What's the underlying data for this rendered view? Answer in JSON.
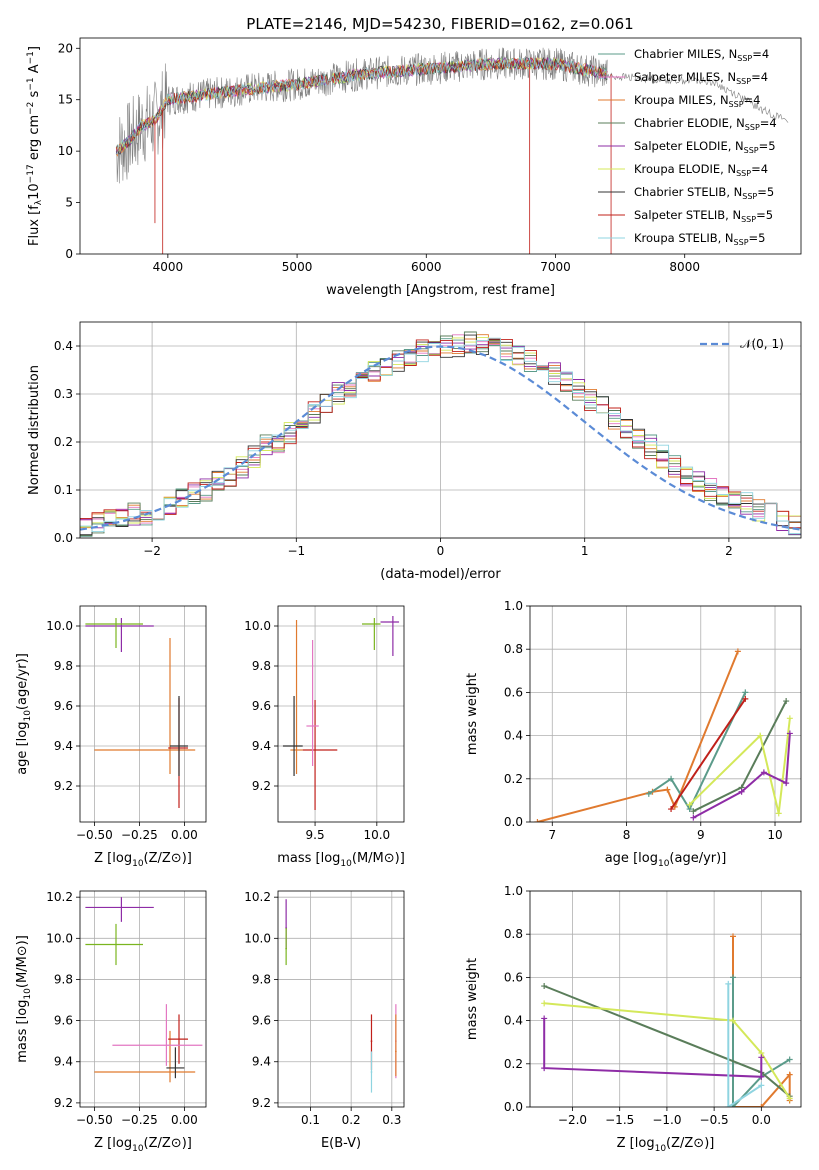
{
  "figure": {
    "title": "PLATE=2146, MJD=54230, FIBERID=0162, z=0.061"
  },
  "chart_data": [
    {
      "id": "spectrum",
      "type": "line",
      "xlabel": "wavelength [Angstrom, rest frame]",
      "ylabel_parts": [
        "Flux [f",
        "λ",
        "10",
        "−17",
        " erg cm",
        "−2",
        " s",
        "−1",
        " A",
        "−1",
        "]"
      ],
      "xlim": [
        3320,
        8900
      ],
      "ylim": [
        0,
        21
      ],
      "xticks": [
        4000,
        5000,
        6000,
        7000,
        8000
      ],
      "yticks": [
        0,
        5,
        10,
        15,
        20
      ],
      "grid": false,
      "legend_position": "right",
      "series": [
        {
          "name": "Chabrier MILES, N",
          "sub": "SSP",
          "suffix": "=4",
          "color": "#5b9b8a"
        },
        {
          "name": "Salpeter MILES, N",
          "sub": "SSP",
          "suffix": "=4",
          "color": "#e377c2"
        },
        {
          "name": "Kroupa MILES, N",
          "sub": "SSP",
          "suffix": "=4",
          "color": "#e07a2f"
        },
        {
          "name": "Chabrier ELODIE, N",
          "sub": "SSP",
          "suffix": "=4",
          "color": "#5a7d5a"
        },
        {
          "name": "Salpeter ELODIE, N",
          "sub": "SSP",
          "suffix": "=5",
          "color": "#8e2ca6"
        },
        {
          "name": "Kroupa ELODIE, N",
          "sub": "SSP",
          "suffix": "=4",
          "color": "#d4e85a"
        },
        {
          "name": "Chabrier STELIB, N",
          "sub": "SSP",
          "suffix": "=5",
          "color": "#333333"
        },
        {
          "name": "Salpeter STELIB, N",
          "sub": "SSP",
          "suffix": "=5",
          "color": "#c0201a"
        },
        {
          "name": "Kroupa STELIB, N",
          "sub": "SSP",
          "suffix": "=5",
          "color": "#8fd4e0"
        }
      ],
      "data_series_color": "#808080",
      "continuum": [
        {
          "x": 3600,
          "y": 10
        },
        {
          "x": 3700,
          "y": 11
        },
        {
          "x": 3800,
          "y": 12.5
        },
        {
          "x": 3900,
          "y": 13
        },
        {
          "x": 4000,
          "y": 15
        },
        {
          "x": 4300,
          "y": 15.5
        },
        {
          "x": 4600,
          "y": 16
        },
        {
          "x": 5000,
          "y": 16.5
        },
        {
          "x": 5500,
          "y": 17.5
        },
        {
          "x": 6000,
          "y": 18
        },
        {
          "x": 6500,
          "y": 18.5
        },
        {
          "x": 7000,
          "y": 18.5
        },
        {
          "x": 7200,
          "y": 18
        },
        {
          "x": 7400,
          "y": 17.5
        }
      ],
      "model_continuum": [
        {
          "x": 7400,
          "y": 17.3
        },
        {
          "x": 7800,
          "y": 17
        },
        {
          "x": 8200,
          "y": 16.8
        },
        {
          "x": 8400,
          "y": 15.5
        },
        {
          "x": 8600,
          "y": 14
        },
        {
          "x": 8800,
          "y": 13
        }
      ]
    },
    {
      "id": "residuals",
      "type": "histogram",
      "xlabel": "(data-model)/error",
      "ylabel": "Normed distribution",
      "xlim": [
        -2.5,
        2.5
      ],
      "ylim": [
        0,
        0.45
      ],
      "xticks": [
        -2,
        -1,
        0,
        1,
        2
      ],
      "yticks": [
        0.0,
        0.1,
        0.2,
        0.3,
        0.4
      ],
      "grid": true,
      "legend": {
        "label": "𝒩(0, 1)",
        "position": "top-right",
        "color": "#5b8bd6"
      },
      "bin_width": 0.1,
      "bin_start": -2.5,
      "hist": [
        0.02,
        0.03,
        0.04,
        0.04,
        0.05,
        0.05,
        0.06,
        0.07,
        0.08,
        0.09,
        0.1,
        0.12,
        0.13,
        0.15,
        0.17,
        0.19,
        0.2,
        0.22,
        0.24,
        0.26,
        0.28,
        0.3,
        0.31,
        0.33,
        0.35,
        0.36,
        0.37,
        0.38,
        0.39,
        0.4,
        0.4,
        0.4,
        0.41,
        0.4,
        0.4,
        0.39,
        0.38,
        0.37,
        0.36,
        0.34,
        0.33,
        0.31,
        0.29,
        0.27,
        0.25,
        0.23,
        0.21,
        0.19,
        0.17,
        0.15,
        0.13,
        0.12,
        0.1,
        0.09,
        0.08,
        0.07,
        0.06,
        0.05,
        0.04,
        0.03
      ],
      "gaussian_sigma": 1
    },
    {
      "id": "age-vs-Z",
      "type": "errorbar",
      "xlabel": "Z [log10(Z/Z⊙)]",
      "ylabel": "age  [log10(age/yr)]",
      "xlim": [
        -0.58,
        0.12
      ],
      "ylim": [
        9.02,
        10.1
      ],
      "xticks": [
        -0.5,
        -0.25,
        0.0
      ],
      "xtick_labels": [
        "−0.50",
        "−0.25",
        "0.00"
      ],
      "yticks": [
        9.2,
        9.4,
        9.6,
        9.8,
        10.0
      ],
      "grid": true,
      "points": [
        {
          "x": -0.35,
          "y": 10.0,
          "xerr": [
            0.2,
            0.18
          ],
          "yerr": [
            0.13,
            0.04
          ],
          "color": "#8e2ca6"
        },
        {
          "x": -0.38,
          "y": 10.01,
          "xerr": [
            0.17,
            0.15
          ],
          "yerr": [
            0.12,
            0.03
          ],
          "color": "#7ab51f"
        },
        {
          "x": -0.08,
          "y": 9.38,
          "xerr": [
            0.42,
            0.14
          ],
          "yerr": [
            0.12,
            0.56
          ],
          "color": "#e07a2f"
        },
        {
          "x": -0.03,
          "y": 9.39,
          "xerr": [
            0.06,
            0.05
          ],
          "yerr": [
            0.3,
            0.25
          ],
          "color": "#c0201a"
        },
        {
          "x": -0.03,
          "y": 9.4,
          "xerr": [
            0.05,
            0.05
          ],
          "yerr": [
            0.15,
            0.25
          ],
          "color": "#333333"
        }
      ]
    },
    {
      "id": "age-vs-mass",
      "type": "errorbar",
      "xlabel": "mass [log10(M/M⊙)]",
      "ylabel": "",
      "xlim": [
        9.2,
        10.22
      ],
      "ylim": [
        9.02,
        10.1
      ],
      "xticks": [
        9.5,
        10.0
      ],
      "xtick_labels": [
        "9.5",
        "10.0"
      ],
      "yticks": [
        9.2,
        9.4,
        9.6,
        9.8,
        10.0
      ],
      "grid": true,
      "points": [
        {
          "x": 10.13,
          "y": 10.02,
          "xerr": [
            0.1,
            0.05
          ],
          "yerr": [
            0.17,
            0.03
          ],
          "color": "#8e2ca6"
        },
        {
          "x": 9.98,
          "y": 10.01,
          "xerr": [
            0.1,
            0.05
          ],
          "yerr": [
            0.13,
            0.03
          ],
          "color": "#7ab51f"
        },
        {
          "x": 9.35,
          "y": 9.38,
          "xerr": [
            0.05,
            0.05
          ],
          "yerr": [
            0.12,
            0.65
          ],
          "color": "#e07a2f"
        },
        {
          "x": 9.5,
          "y": 9.38,
          "xerr": [
            0.1,
            0.18
          ],
          "yerr": [
            0.3,
            0.25
          ],
          "color": "#c0201a"
        },
        {
          "x": 9.33,
          "y": 9.4,
          "xerr": [
            0.09,
            0.07
          ],
          "yerr": [
            0.15,
            0.25
          ],
          "color": "#333333"
        },
        {
          "x": 9.48,
          "y": 9.5,
          "xerr": [
            0.05,
            0.05
          ],
          "yerr": [
            0.2,
            0.43
          ],
          "color": "#e377c2"
        }
      ]
    },
    {
      "id": "mass-weight-vs-age",
      "type": "line",
      "xlabel": "age  [log10(age/yr)]",
      "ylabel": "mass weight",
      "xlim": [
        6.7,
        10.35
      ],
      "ylim": [
        0,
        1
      ],
      "xticks": [
        7,
        8,
        9,
        10
      ],
      "yticks": [
        0.0,
        0.2,
        0.4,
        0.6,
        0.8,
        1.0
      ],
      "grid": true,
      "series": [
        {
          "color": "#e07a2f",
          "x": [
            6.8,
            8.35,
            8.55,
            8.65,
            9.5
          ],
          "y": [
            0.0,
            0.14,
            0.15,
            0.07,
            0.79
          ]
        },
        {
          "color": "#5b9b8a",
          "x": [
            8.3,
            8.6,
            8.85,
            9.6
          ],
          "y": [
            0.13,
            0.2,
            0.06,
            0.6
          ]
        },
        {
          "color": "#5a7d5a",
          "x": [
            8.9,
            9.55,
            10.15
          ],
          "y": [
            0.05,
            0.16,
            0.56
          ]
        },
        {
          "color": "#d4e85a",
          "x": [
            8.85,
            9.8,
            10.05,
            10.2
          ],
          "y": [
            0.08,
            0.4,
            0.04,
            0.48
          ]
        },
        {
          "color": "#8e2ca6",
          "x": [
            8.9,
            9.55,
            9.85,
            10.15,
            10.2
          ],
          "y": [
            0.02,
            0.14,
            0.23,
            0.18,
            0.41
          ]
        },
        {
          "color": "#c0201a",
          "x": [
            8.6,
            9.6
          ],
          "y": [
            0.06,
            0.57
          ]
        }
      ]
    },
    {
      "id": "mass-vs-Z",
      "type": "errorbar",
      "xlabel": "Z [log10(Z/Z⊙)]",
      "ylabel": "mass [log10(M/M⊙)]",
      "xlim": [
        -0.58,
        0.12
      ],
      "ylim": [
        9.18,
        10.23
      ],
      "xticks": [
        -0.5,
        -0.25,
        0.0
      ],
      "xtick_labels": [
        "−0.50",
        "−0.25",
        "0.00"
      ],
      "yticks": [
        9.2,
        9.4,
        9.6,
        9.8,
        10.0,
        10.2
      ],
      "grid": true,
      "points": [
        {
          "x": -0.35,
          "y": 10.15,
          "xerr": [
            0.2,
            0.18
          ],
          "yerr": [
            0.07,
            0.05
          ],
          "color": "#8e2ca6"
        },
        {
          "x": -0.38,
          "y": 9.97,
          "xerr": [
            0.17,
            0.15
          ],
          "yerr": [
            0.1,
            0.1
          ],
          "color": "#7ab51f"
        },
        {
          "x": -0.08,
          "y": 9.35,
          "xerr": [
            0.42,
            0.14
          ],
          "yerr": [
            0.05,
            0.2
          ],
          "color": "#e07a2f"
        },
        {
          "x": -0.03,
          "y": 9.51,
          "xerr": [
            0.06,
            0.05
          ],
          "yerr": [
            0.12,
            0.12
          ],
          "color": "#c0201a"
        },
        {
          "x": -0.05,
          "y": 9.37,
          "xerr": [
            0.05,
            0.05
          ],
          "yerr": [
            0.05,
            0.1
          ],
          "color": "#333333"
        },
        {
          "x": -0.1,
          "y": 9.48,
          "xerr": [
            0.3,
            0.2
          ],
          "yerr": [
            0.1,
            0.2
          ],
          "color": "#e377c2"
        }
      ]
    },
    {
      "id": "mass-vs-EBV",
      "type": "errorbar",
      "xlabel": "E(B-V)",
      "ylabel": "",
      "xlim": [
        0.02,
        0.33
      ],
      "ylim": [
        9.18,
        10.23
      ],
      "xticks": [
        0.1,
        0.2,
        0.3
      ],
      "xtick_labels": [
        "0.1",
        "0.2",
        "0.3"
      ],
      "yticks": [
        9.2,
        9.4,
        9.6,
        9.8,
        10.0,
        10.2
      ],
      "grid": true,
      "points": [
        {
          "x": 0.04,
          "y": 10.05,
          "xerr": [
            0.002,
            0.002
          ],
          "yerr": [
            0.1,
            0.14
          ],
          "color": "#8e2ca6"
        },
        {
          "x": 0.04,
          "y": 9.95,
          "xerr": [
            0.002,
            0.002
          ],
          "yerr": [
            0.08,
            0.1
          ],
          "color": "#7ab51f"
        },
        {
          "x": 0.25,
          "y": 9.5,
          "xerr": [
            0.002,
            0.002
          ],
          "yerr": [
            0.14,
            0.13
          ],
          "color": "#c0201a"
        },
        {
          "x": 0.25,
          "y": 9.35,
          "xerr": [
            0.002,
            0.002
          ],
          "yerr": [
            0.1,
            0.1
          ],
          "color": "#8fd4e0"
        },
        {
          "x": 0.31,
          "y": 9.5,
          "xerr": [
            0.002,
            0.002
          ],
          "yerr": [
            0.18,
            0.18
          ],
          "color": "#e377c2"
        },
        {
          "x": 0.31,
          "y": 9.45,
          "xerr": [
            0.002,
            0.002
          ],
          "yerr": [
            0.12,
            0.18
          ],
          "color": "#e07a2f"
        }
      ]
    },
    {
      "id": "mass-weight-vs-Z",
      "type": "line",
      "xlabel": "Z [log10(Z/Z⊙)]",
      "ylabel": "mass weight",
      "xlim": [
        -2.45,
        0.42
      ],
      "ylim": [
        0,
        1
      ],
      "xticks": [
        -2.0,
        -1.5,
        -1.0,
        -0.5,
        0.0
      ],
      "xtick_labels": [
        "−2.0",
        "−1.5",
        "−1.0",
        "−0.5",
        "0.0"
      ],
      "yticks": [
        0.0,
        0.2,
        0.4,
        0.6,
        0.8,
        1.0
      ],
      "grid": true,
      "series": [
        {
          "color": "#e07a2f",
          "x": [
            -0.3,
            -0.3,
            0.0,
            0.3,
            0.3
          ],
          "y": [
            0.79,
            0.0,
            0.0,
            0.15,
            0.03
          ]
        },
        {
          "color": "#5b9b8a",
          "x": [
            -0.3,
            -0.3,
            0.0,
            0.3
          ],
          "y": [
            0.6,
            0.0,
            0.14,
            0.22
          ]
        },
        {
          "color": "#5a7d5a",
          "x": [
            -2.3,
            0.0,
            0.3
          ],
          "y": [
            0.56,
            0.16,
            0.05
          ]
        },
        {
          "color": "#d4e85a",
          "x": [
            -2.3,
            -0.3,
            0.0,
            0.3
          ],
          "y": [
            0.48,
            0.4,
            0.25,
            0.04
          ]
        },
        {
          "color": "#8e2ca6",
          "x": [
            -2.3,
            -2.3,
            0.0,
            0.0
          ],
          "y": [
            0.41,
            0.18,
            0.14,
            0.23
          ]
        },
        {
          "color": "#8fd4e0",
          "x": [
            -0.35,
            -0.35,
            0.0
          ],
          "y": [
            0.57,
            0.0,
            0.1
          ]
        }
      ]
    }
  ]
}
